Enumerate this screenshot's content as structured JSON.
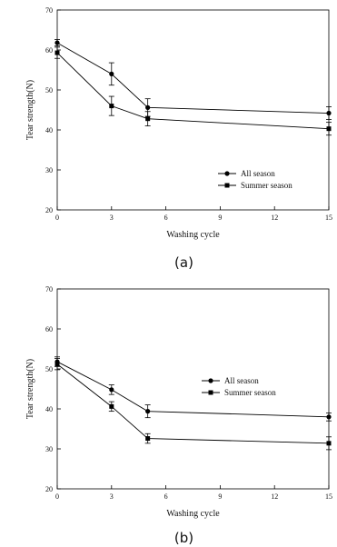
{
  "chart_data": [
    {
      "type": "line",
      "panel_label": "(a)",
      "xlabel": "Washing cycle",
      "ylabel": "Tear strength(N)",
      "xlim": [
        0,
        15
      ],
      "ylim": [
        20,
        70
      ],
      "xticks": [
        0,
        3,
        6,
        9,
        12,
        15
      ],
      "yticks": [
        20,
        30,
        40,
        50,
        60,
        70
      ],
      "x": [
        0,
        3,
        5,
        15
      ],
      "legend_position": "lower-right",
      "series": [
        {
          "name": "All season",
          "marker": "circle",
          "values": [
            61.8,
            54.0,
            45.6,
            44.2
          ],
          "errors": [
            0.8,
            2.8,
            2.2,
            1.6
          ]
        },
        {
          "name": "Summer season",
          "marker": "square",
          "values": [
            59.3,
            46.0,
            42.8,
            40.3
          ],
          "errors": [
            1.4,
            2.4,
            1.8,
            1.6
          ]
        }
      ]
    },
    {
      "type": "line",
      "panel_label": "(b)",
      "xlabel": "Washing cycle",
      "ylabel": "Tear strength(N)",
      "xlim": [
        0,
        15
      ],
      "ylim": [
        20,
        70
      ],
      "xticks": [
        0,
        3,
        6,
        9,
        12,
        15
      ],
      "yticks": [
        20,
        30,
        40,
        50,
        60,
        70
      ],
      "x": [
        0,
        3,
        5,
        15
      ],
      "legend_position": "center-right",
      "series": [
        {
          "name": "All season",
          "marker": "circle",
          "values": [
            51.8,
            44.8,
            39.4,
            38.0
          ],
          "errors": [
            1.2,
            1.2,
            1.6,
            1.0
          ]
        },
        {
          "name": "Summer season",
          "marker": "square",
          "values": [
            51.2,
            40.6,
            32.6,
            31.4
          ],
          "errors": [
            1.4,
            1.2,
            1.2,
            1.6
          ]
        }
      ]
    }
  ]
}
